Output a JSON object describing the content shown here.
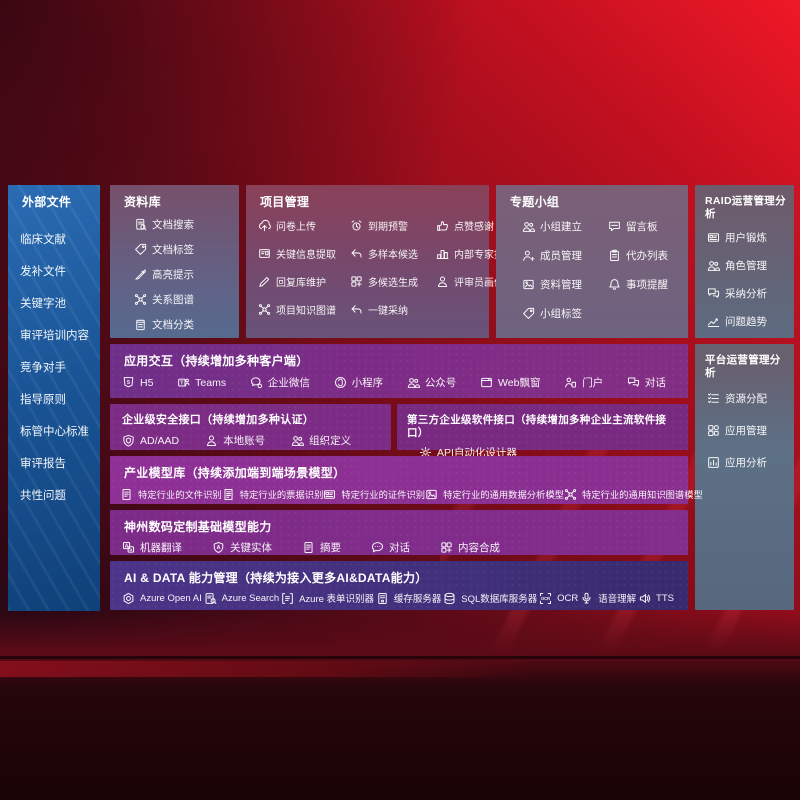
{
  "palette": {
    "background_red": "#a30f1e",
    "sidebar_blue": "#1b5ea9",
    "panel_purple": "#7d2c87",
    "panel_magenta": "#8c3095",
    "panel_indigo": "#45317e",
    "panel_slate": "#5d7086",
    "text": "#ffffff"
  },
  "sidebar": {
    "title": "外部文件",
    "items": [
      "临床文献",
      "发补文件",
      "关键字池",
      "审评培训内容",
      "竞争对手",
      "指导原则",
      "标管中心标准",
      "审评报告",
      "共性问题"
    ]
  },
  "panels": {
    "library": {
      "title": "资料库",
      "items": [
        {
          "label": "文档搜索",
          "icon": "doc-search-icon"
        },
        {
          "label": "文档标签",
          "icon": "tag-icon"
        },
        {
          "label": "高亮提示",
          "icon": "highlight-icon"
        },
        {
          "label": "关系图谱",
          "icon": "network-icon"
        },
        {
          "label": "文档分类",
          "icon": "doc-category-icon"
        }
      ]
    },
    "project": {
      "title": "项目管理",
      "items": [
        {
          "label": "问卷上传",
          "icon": "upload-icon"
        },
        {
          "label": "到期预警",
          "icon": "alert-icon"
        },
        {
          "label": "点赞感谢",
          "icon": "thumbs-up-icon"
        },
        {
          "label": "关键信息提取",
          "icon": "extract-icon"
        },
        {
          "label": "多样本候选",
          "icon": "reply-icon"
        },
        {
          "label": "内部专家排名",
          "icon": "ranking-icon"
        },
        {
          "label": "回复库维护",
          "icon": "pencil-icon"
        },
        {
          "label": "多候选生成",
          "icon": "generate-icon"
        },
        {
          "label": "评审员画像",
          "icon": "person-icon"
        },
        {
          "label": "项目知识图谱",
          "icon": "network-icon"
        },
        {
          "label": "一键采纳",
          "icon": "adopt-icon"
        }
      ]
    },
    "groups": {
      "title": "专题小组",
      "items": [
        {
          "label": "小组建立",
          "icon": "people-icon"
        },
        {
          "label": "留言板",
          "icon": "bbs-icon"
        },
        {
          "label": "成员管理",
          "icon": "member-add-icon"
        },
        {
          "label": "代办列表",
          "icon": "todo-icon"
        },
        {
          "label": "资料管理",
          "icon": "archive-icon"
        },
        {
          "label": "事项提醒",
          "icon": "bell-icon"
        },
        {
          "label": "小组标签",
          "icon": "tag-icon"
        }
      ]
    },
    "raid": {
      "title": "RAID运营管理分析",
      "items": [
        {
          "label": "用户锻炼",
          "icon": "id-card-icon"
        },
        {
          "label": "角色管理",
          "icon": "people-icon"
        },
        {
          "label": "采纳分析",
          "icon": "qa-icon"
        },
        {
          "label": "问题趋势",
          "icon": "trend-icon"
        }
      ]
    },
    "platform": {
      "title": "平台运营管理分析",
      "items": [
        {
          "label": "资源分配",
          "icon": "allocation-icon"
        },
        {
          "label": "应用管理",
          "icon": "apps-icon"
        },
        {
          "label": "应用分析",
          "icon": "analysis-icon"
        }
      ]
    },
    "interaction": {
      "title": "应用交互（持续增加多种客户端）",
      "items": [
        {
          "label": "H5",
          "icon": "h5-icon"
        },
        {
          "label": "Teams",
          "icon": "teams-icon"
        },
        {
          "label": "企业微信",
          "icon": "wechat-work-icon"
        },
        {
          "label": "小程序",
          "icon": "miniprogram-icon"
        },
        {
          "label": "公众号",
          "icon": "official-account-icon"
        },
        {
          "label": "Web飘窗",
          "icon": "web-popup-icon"
        },
        {
          "label": "门户",
          "icon": "portal-icon"
        },
        {
          "label": "对话",
          "icon": "dialog-icon"
        }
      ]
    },
    "security": {
      "title": "企业级安全接口（持续增加多种认证）",
      "items": [
        {
          "label": "AD/AAD",
          "icon": "shield-icon"
        },
        {
          "label": "本地账号",
          "icon": "account-icon"
        },
        {
          "label": "组织定义",
          "icon": "org-icon"
        }
      ]
    },
    "thirdparty": {
      "title": "第三方企业级软件接口（持续增加多种企业主流软件接口）",
      "items": [
        {
          "label": "API自动化设计器",
          "icon": "api-gear-icon"
        }
      ]
    },
    "industry": {
      "title": "产业模型库（持续添加端到端场景模型）",
      "items": [
        {
          "label": "特定行业的文件识别",
          "icon": "doc-icon"
        },
        {
          "label": "特定行业的票据识别",
          "icon": "receipt-icon"
        },
        {
          "label": "特定行业的证件识别",
          "icon": "id-card-icon"
        },
        {
          "label": "特定行业的通用数据分析模型",
          "icon": "data-model-icon"
        },
        {
          "label": "特定行业的通用知识图谱模型",
          "icon": "knowledge-graph-icon"
        }
      ]
    },
    "basemodel": {
      "title": "神州数码定制基础模型能力",
      "items": [
        {
          "label": "机器翻译",
          "icon": "translate-icon"
        },
        {
          "label": "关键实体",
          "icon": "entity-icon"
        },
        {
          "label": "摘要",
          "icon": "summary-icon"
        },
        {
          "label": "对话",
          "icon": "chat-dots-icon"
        },
        {
          "label": "内容合成",
          "icon": "compose-icon"
        }
      ]
    },
    "aidata": {
      "title": "AI & DATA 能力管理（持续为接入更多AI&DATA能力）",
      "items": [
        {
          "label": "Azure Open AI",
          "icon": "openai-icon"
        },
        {
          "label": "Azure Search",
          "icon": "azure-search-icon"
        },
        {
          "label": "Azure 表单识别器",
          "icon": "form-recognizer-icon"
        },
        {
          "label": "缓存服务器",
          "icon": "cache-server-icon"
        },
        {
          "label": "SQL数据库服务器",
          "icon": "sql-db-icon"
        },
        {
          "label": "OCR",
          "icon": "ocr-icon"
        },
        {
          "label": "语音理解",
          "icon": "speech-icon"
        },
        {
          "label": "TTS",
          "icon": "tts-icon"
        }
      ]
    }
  }
}
